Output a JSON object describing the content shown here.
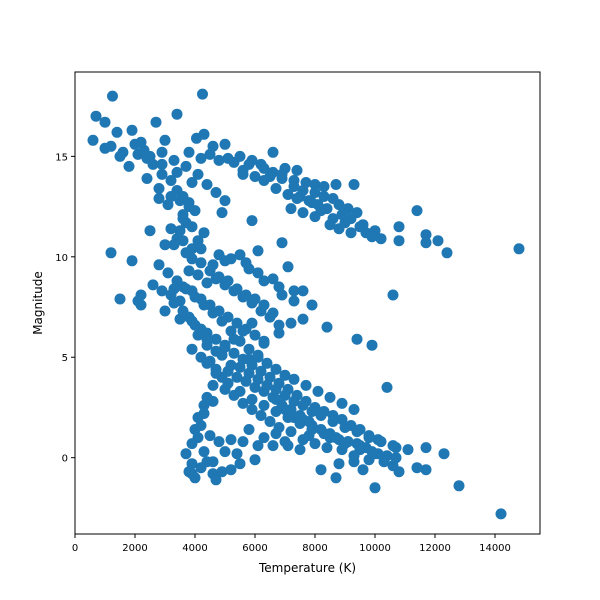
{
  "chart_data": {
    "type": "scatter",
    "xlabel": "Temperature (K)",
    "ylabel": "Magnitude",
    "xlim": [
      0,
      15500
    ],
    "ylim": [
      -3.8,
      19.2
    ],
    "xticks": [
      "0",
      "2000",
      "4000",
      "6000",
      "8000",
      "10000",
      "12000",
      "14000"
    ],
    "yticks": [
      "0",
      "5",
      "10",
      "15"
    ],
    "grid": false,
    "marker_color": "#1f77b4",
    "points": [
      [
        700,
        17
      ],
      [
        1250,
        18
      ],
      [
        4250,
        18.1
      ],
      [
        3400,
        17.1
      ],
      [
        1000,
        16.7
      ],
      [
        1400,
        16.2
      ],
      [
        1900,
        16.3
      ],
      [
        2200,
        15.7
      ],
      [
        2700,
        16.7
      ],
      [
        3000,
        15.8
      ],
      [
        4050,
        15.9
      ],
      [
        4300,
        16.1
      ],
      [
        4600,
        15.5
      ],
      [
        5000,
        15.6
      ],
      [
        600,
        15.8
      ],
      [
        1200,
        15.5
      ],
      [
        1600,
        15.2
      ],
      [
        2100,
        15.1
      ],
      [
        2500,
        15
      ],
      [
        2900,
        15.2
      ],
      [
        3300,
        14.8
      ],
      [
        3700,
        14.5
      ],
      [
        4200,
        14.9
      ],
      [
        4800,
        14.8
      ],
      [
        5300,
        14.7
      ],
      [
        5800,
        14.6
      ],
      [
        6200,
        14.6
      ],
      [
        6600,
        15.2
      ],
      [
        7000,
        14.4
      ],
      [
        7400,
        14.3
      ],
      [
        5600,
        14.3
      ],
      [
        6500,
        14
      ],
      [
        6900,
        13.9
      ],
      [
        7300,
        13.8
      ],
      [
        7700,
        13.7
      ],
      [
        8000,
        13.6
      ],
      [
        8300,
        13.5
      ],
      [
        8700,
        13.6
      ],
      [
        9300,
        13.6
      ],
      [
        7500,
        13
      ],
      [
        7800,
        12.8
      ],
      [
        8100,
        12.6
      ],
      [
        8400,
        12.4
      ],
      [
        8800,
        12.6
      ],
      [
        9100,
        12.4
      ],
      [
        9400,
        12.2
      ],
      [
        7200,
        12.4
      ],
      [
        7600,
        12.2
      ],
      [
        8000,
        12
      ],
      [
        8500,
        11.6
      ],
      [
        8800,
        11.4
      ],
      [
        9200,
        11.2
      ],
      [
        9700,
        11.2
      ],
      [
        10000,
        11.3
      ],
      [
        10800,
        11.5
      ],
      [
        11400,
        12.3
      ],
      [
        11700,
        11.1
      ],
      [
        12100,
        10.8
      ],
      [
        12400,
        10.2
      ],
      [
        14800,
        10.4
      ],
      [
        10800,
        10.8
      ],
      [
        11700,
        10.7
      ],
      [
        10600,
        8.1
      ],
      [
        9400,
        5.9
      ],
      [
        9900,
        5.6
      ],
      [
        10400,
        3.5
      ],
      [
        1800,
        14.5
      ],
      [
        2400,
        13.9
      ],
      [
        2800,
        13.4
      ],
      [
        3200,
        13
      ],
      [
        3500,
        12.8
      ],
      [
        3800,
        12.5
      ],
      [
        3600,
        12.1
      ],
      [
        3700,
        11.7
      ],
      [
        3500,
        11.3
      ],
      [
        3400,
        10.9
      ],
      [
        3300,
        10.6
      ],
      [
        3000,
        10.6
      ],
      [
        2500,
        11.3
      ],
      [
        1200,
        10.2
      ],
      [
        1900,
        9.8
      ],
      [
        3700,
        10.2
      ],
      [
        3900,
        9.9
      ],
      [
        4200,
        9.7
      ],
      [
        4600,
        9.6
      ],
      [
        5000,
        9.8
      ],
      [
        5500,
        10.1
      ],
      [
        5800,
        9.4
      ],
      [
        6300,
        8.8
      ],
      [
        6800,
        8.5
      ],
      [
        7100,
        9.5
      ],
      [
        7300,
        8.3
      ],
      [
        7300,
        7.8
      ],
      [
        7600,
        8.3
      ],
      [
        7900,
        7.6
      ],
      [
        7600,
        6.9
      ],
      [
        7200,
        6.7
      ],
      [
        8400,
        6.5
      ],
      [
        6800,
        6.2
      ],
      [
        6300,
        5.8
      ],
      [
        2200,
        8.1
      ],
      [
        2100,
        7.8
      ],
      [
        1500,
        7.9
      ],
      [
        2200,
        7.6
      ],
      [
        2900,
        8.3
      ],
      [
        3200,
        8.1
      ],
      [
        3600,
        8.5
      ],
      [
        3900,
        8.3
      ],
      [
        4200,
        7.9
      ],
      [
        4500,
        7.6
      ],
      [
        4800,
        7.3
      ],
      [
        5100,
        7
      ],
      [
        5400,
        6.7
      ],
      [
        5700,
        6.4
      ],
      [
        6000,
        6.1
      ],
      [
        6300,
        5.7
      ],
      [
        3800,
        7
      ],
      [
        3500,
        6.9
      ],
      [
        4000,
        6.6
      ],
      [
        4400,
        6.2
      ],
      [
        4700,
        5.9
      ],
      [
        5000,
        5.5
      ],
      [
        5300,
        5.2
      ],
      [
        5600,
        4.9
      ],
      [
        5900,
        4.6
      ],
      [
        6200,
        4.3
      ],
      [
        6500,
        4
      ],
      [
        6800,
        3.7
      ],
      [
        7100,
        3.4
      ],
      [
        7400,
        3.1
      ],
      [
        7700,
        2.8
      ],
      [
        8000,
        2.5
      ],
      [
        8300,
        2.3
      ],
      [
        8600,
        2.1
      ],
      [
        8900,
        1.9
      ],
      [
        9200,
        1.6
      ],
      [
        9500,
        1.4
      ],
      [
        9800,
        1.1
      ],
      [
        10100,
        0.9
      ],
      [
        10600,
        0.6
      ],
      [
        11100,
        0.4
      ],
      [
        11700,
        0.5
      ],
      [
        11700,
        -0.6
      ],
      [
        11400,
        -0.5
      ],
      [
        12300,
        0.2
      ],
      [
        12800,
        -1.4
      ],
      [
        14200,
        -2.8
      ],
      [
        10800,
        -0.7
      ],
      [
        10600,
        -0.4
      ],
      [
        10000,
        -1.5
      ],
      [
        9600,
        -0.6
      ],
      [
        9300,
        -0.2
      ],
      [
        8800,
        -0.3
      ],
      [
        8700,
        -1
      ],
      [
        8200,
        -0.6
      ],
      [
        7500,
        0.4
      ],
      [
        7000,
        0.8
      ],
      [
        6600,
        0.6
      ],
      [
        6100,
        0.6
      ],
      [
        5600,
        0.8
      ],
      [
        5200,
        0.9
      ],
      [
        4800,
        0.8
      ],
      [
        4500,
        1.1
      ],
      [
        4200,
        1.6
      ],
      [
        4000,
        1.4
      ],
      [
        4300,
        2.2
      ],
      [
        4600,
        2.8
      ],
      [
        5000,
        3.4
      ],
      [
        5300,
        3.1
      ],
      [
        5600,
        2.7
      ],
      [
        5900,
        2.4
      ],
      [
        6200,
        2.1
      ],
      [
        6500,
        1.8
      ],
      [
        6800,
        1.5
      ],
      [
        7200,
        1.3
      ],
      [
        7800,
        1.1
      ],
      [
        8500,
        1
      ],
      [
        9000,
        0.7
      ],
      [
        9500,
        0.4
      ],
      [
        10000,
        0.2
      ],
      [
        5000,
        0.3
      ],
      [
        4600,
        -0.2
      ],
      [
        4200,
        -0.5
      ],
      [
        3900,
        -0.3
      ],
      [
        3900,
        -0.8
      ],
      [
        4000,
        -1
      ],
      [
        4600,
        -0.8
      ],
      [
        4700,
        -1.1
      ],
      [
        5200,
        -0.6
      ],
      [
        5500,
        -0.3
      ],
      [
        6000,
        -0.1
      ],
      [
        4400,
        -0.2
      ],
      [
        5800,
        4.9
      ],
      [
        6100,
        5.1
      ],
      [
        6400,
        3.6
      ],
      [
        6700,
        2.9
      ],
      [
        7000,
        2.4
      ],
      [
        7300,
        2
      ],
      [
        7600,
        1.9
      ],
      [
        7900,
        1.6
      ],
      [
        8200,
        1.4
      ],
      [
        8500,
        1.2
      ],
      [
        8800,
        0.9
      ],
      [
        9100,
        0.8
      ],
      [
        9400,
        0.7
      ],
      [
        9700,
        0.5
      ],
      [
        10100,
        0.2
      ],
      [
        10400,
        0.1
      ],
      [
        5500,
        5.8
      ],
      [
        5200,
        6.3
      ],
      [
        4900,
        6.8
      ],
      [
        4600,
        7.2
      ],
      [
        4300,
        7.6
      ],
      [
        4000,
        8
      ],
      [
        3700,
        8.4
      ],
      [
        3400,
        8.8
      ],
      [
        3100,
        9.2
      ],
      [
        2800,
        9.6
      ],
      [
        4400,
        8.7
      ],
      [
        4700,
        8.9
      ],
      [
        5000,
        8.6
      ],
      [
        5300,
        8.3
      ],
      [
        5600,
        8
      ],
      [
        5900,
        7.7
      ],
      [
        6200,
        7.3
      ],
      [
        6500,
        7
      ],
      [
        6800,
        6.6
      ],
      [
        5100,
        4.3
      ],
      [
        5400,
        4
      ],
      [
        5700,
        3.8
      ],
      [
        6000,
        3.5
      ],
      [
        6300,
        3.3
      ],
      [
        6600,
        3
      ],
      [
        6900,
        2.6
      ],
      [
        7200,
        2.4
      ],
      [
        7500,
        2.1
      ],
      [
        7800,
        1.8
      ],
      [
        4100,
        14.1
      ],
      [
        4400,
        13.6
      ],
      [
        4700,
        13.2
      ],
      [
        5000,
        12.8
      ],
      [
        4900,
        12.2
      ],
      [
        3900,
        13.7
      ],
      [
        3400,
        14.2
      ],
      [
        2900,
        14.6
      ],
      [
        2400,
        14.9
      ],
      [
        1500,
        15
      ],
      [
        1000,
        15.4
      ],
      [
        5900,
        11.8
      ],
      [
        6100,
        10.3
      ],
      [
        6900,
        10.7
      ],
      [
        5600,
        14.1
      ],
      [
        6000,
        14
      ],
      [
        6300,
        13.8
      ],
      [
        6700,
        13.4
      ],
      [
        7100,
        13.1
      ],
      [
        7400,
        12.9
      ],
      [
        7900,
        12.7
      ],
      [
        8200,
        12.3
      ],
      [
        8600,
        11.9
      ],
      [
        9000,
        11.7
      ],
      [
        9500,
        11.5
      ],
      [
        4300,
        11.2
      ],
      [
        4100,
        10.8
      ],
      [
        3900,
        10.4
      ],
      [
        4800,
        10.1
      ],
      [
        5200,
        9.9
      ],
      [
        5700,
        9.7
      ],
      [
        6100,
        9.2
      ],
      [
        6600,
        8.9
      ],
      [
        6900,
        8.1
      ],
      [
        4500,
        4.8
      ],
      [
        4700,
        4.4
      ],
      [
        4900,
        4
      ],
      [
        4600,
        3.6
      ],
      [
        4400,
        3
      ],
      [
        4300,
        2.6
      ],
      [
        4100,
        2
      ],
      [
        4100,
        1
      ],
      [
        3900,
        0.7
      ],
      [
        3700,
        0.2
      ],
      [
        3800,
        -0.7
      ],
      [
        4300,
        0.3
      ],
      [
        4900,
        -0.7
      ],
      [
        5400,
        0.2
      ],
      [
        5800,
        1.4
      ],
      [
        6300,
        1
      ],
      [
        6700,
        1.2
      ],
      [
        7100,
        0.6
      ],
      [
        7600,
        0.9
      ],
      [
        8000,
        0.7
      ],
      [
        8400,
        0.5
      ],
      [
        8900,
        0.4
      ],
      [
        9300,
        0.1
      ],
      [
        9800,
        -0.1
      ],
      [
        10300,
        -0.2
      ],
      [
        10700,
        0
      ],
      [
        3100,
        12.6
      ],
      [
        2800,
        12.9
      ],
      [
        3200,
        11.4
      ],
      [
        3600,
        10.8
      ],
      [
        3800,
        9.3
      ],
      [
        4100,
        9.1
      ],
      [
        3500,
        7.8
      ],
      [
        3300,
        8.4
      ],
      [
        2600,
        8.6
      ],
      [
        3000,
        7.3
      ],
      [
        4100,
        6.1
      ],
      [
        4400,
        5.6
      ],
      [
        4900,
        5.1
      ],
      [
        5200,
        4.6
      ],
      [
        5500,
        4.5
      ],
      [
        5800,
        4.2
      ],
      [
        6100,
        3.9
      ],
      [
        6400,
        3.6
      ],
      [
        6700,
        3.4
      ],
      [
        7000,
        3.1
      ],
      [
        7300,
        2.8
      ],
      [
        7600,
        2.6
      ],
      [
        7900,
        2.3
      ],
      [
        8200,
        2.1
      ],
      [
        8600,
        1.8
      ],
      [
        9000,
        1.5
      ],
      [
        9400,
        1.3
      ],
      [
        9800,
        1
      ],
      [
        10200,
        0.8
      ],
      [
        10700,
        0.5
      ],
      [
        3900,
        5.4
      ],
      [
        4200,
        5
      ],
      [
        4400,
        4.7
      ],
      [
        4700,
        4.2
      ],
      [
        5100,
        3.7
      ],
      [
        5500,
        3.3
      ],
      [
        5900,
        2.9
      ],
      [
        6300,
        2.6
      ],
      [
        6700,
        2.3
      ],
      [
        7100,
        2
      ],
      [
        7500,
        1.7
      ],
      [
        7900,
        1.4
      ],
      [
        8300,
        1.2
      ],
      [
        8700,
        1
      ],
      [
        9100,
        0.8
      ],
      [
        9500,
        0.6
      ],
      [
        9900,
        0.3
      ],
      [
        3800,
        15.2
      ],
      [
        4500,
        15.1
      ],
      [
        5100,
        14.9
      ],
      [
        5500,
        15
      ],
      [
        5900,
        14.8
      ],
      [
        6300,
        14.4
      ],
      [
        6600,
        14.2
      ],
      [
        6900,
        14.1
      ],
      [
        7300,
        13.5
      ],
      [
        7600,
        13.3
      ],
      [
        8000,
        13.2
      ],
      [
        8300,
        13
      ],
      [
        8600,
        12.9
      ],
      [
        8900,
        12.1
      ],
      [
        9200,
        11.9
      ],
      [
        9600,
        11.6
      ],
      [
        9900,
        11
      ],
      [
        10200,
        10.9
      ],
      [
        2000,
        15.6
      ],
      [
        2300,
        15.3
      ],
      [
        2600,
        14.6
      ],
      [
        2900,
        14.1
      ],
      [
        3200,
        13.8
      ],
      [
        3400,
        13.3
      ],
      [
        3600,
        13
      ],
      [
        3800,
        12.7
      ],
      [
        4000,
        12.3
      ],
      [
        3600,
        11.9
      ],
      [
        3900,
        11.5
      ],
      [
        4200,
        10.4
      ],
      [
        4500,
        9.3
      ],
      [
        4800,
        9
      ],
      [
        5100,
        8.8
      ],
      [
        5400,
        8.4
      ],
      [
        5700,
        8.1
      ],
      [
        6000,
        7.9
      ],
      [
        6300,
        7.6
      ],
      [
        6600,
        7.2
      ],
      [
        5900,
        6.7
      ],
      [
        5600,
        6.3
      ],
      [
        5300,
        5.9
      ],
      [
        5000,
        5.6
      ],
      [
        4700,
        5.3
      ],
      [
        4400,
        5.9
      ],
      [
        4200,
        6.4
      ],
      [
        3900,
        6.8
      ],
      [
        3600,
        7.3
      ],
      [
        3300,
        7.7
      ],
      [
        5800,
        5.4
      ],
      [
        6100,
        5
      ],
      [
        6400,
        4.7
      ],
      [
        6700,
        4.4
      ],
      [
        7000,
        4.1
      ],
      [
        7300,
        3.9
      ],
      [
        7700,
        3.6
      ],
      [
        8100,
        3.3
      ],
      [
        8500,
        3
      ],
      [
        8900,
        2.7
      ],
      [
        9300,
        2.4
      ]
    ]
  }
}
